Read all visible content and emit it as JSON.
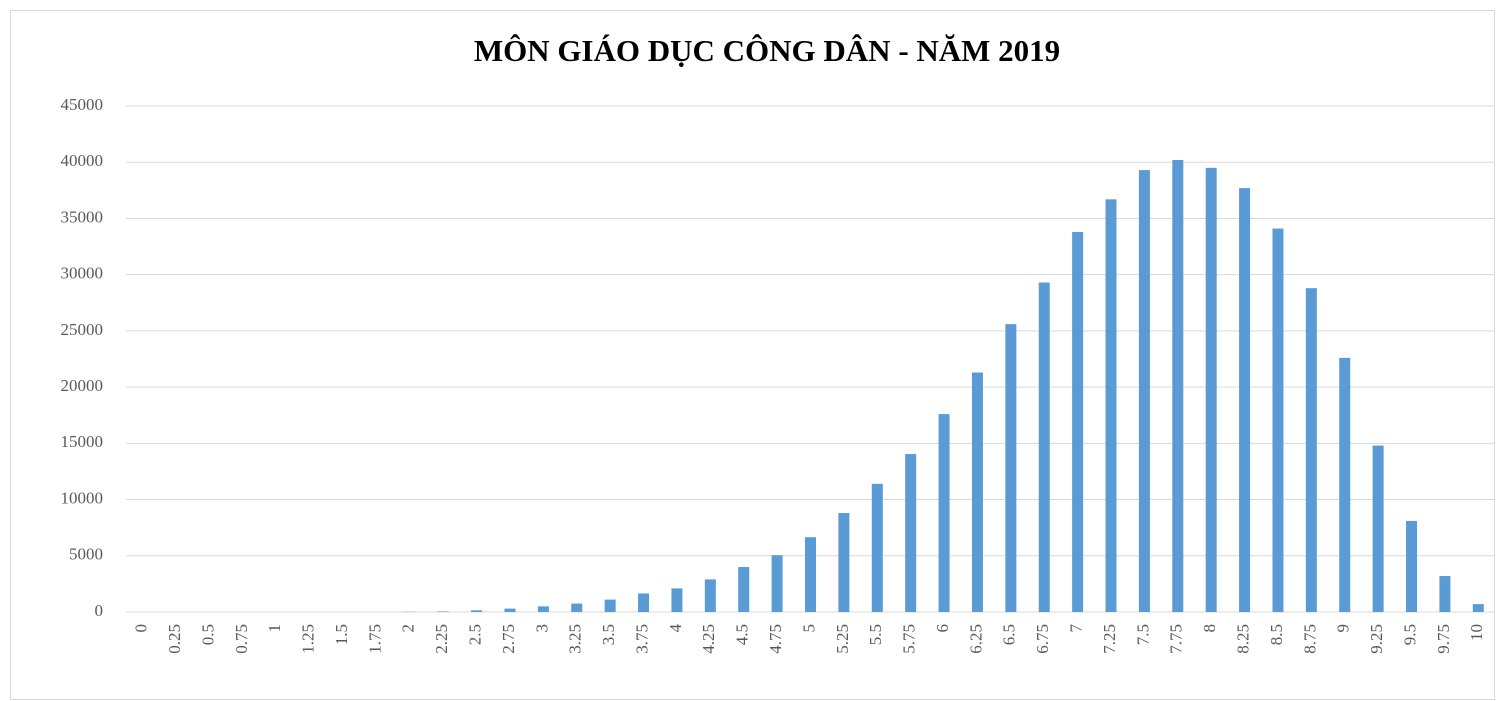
{
  "chart_data": {
    "type": "bar",
    "title": "MÔN GIÁO DỤC CÔNG DÂN - NĂM 2019",
    "categories": [
      "0",
      "0.25",
      "0.5",
      "0.75",
      "1",
      "1.25",
      "1.5",
      "1.75",
      "2",
      "2.25",
      "2.5",
      "2.75",
      "3",
      "3.25",
      "3.5",
      "3.75",
      "4",
      "4.25",
      "4.5",
      "4.75",
      "5",
      "5.25",
      "5.5",
      "5.75",
      "6",
      "6.25",
      "6.5",
      "6.75",
      "7",
      "7.25",
      "7.5",
      "7.75",
      "8",
      "8.25",
      "8.5",
      "8.75",
      "9",
      "9.25",
      "9.5",
      "9.75",
      "10"
    ],
    "values": [
      0,
      0,
      0,
      0,
      0,
      0,
      0,
      0,
      20,
      50,
      150,
      300,
      500,
      750,
      1100,
      1650,
      2100,
      2900,
      4000,
      5050,
      6650,
      8800,
      11400,
      14050,
      17600,
      21300,
      25600,
      29300,
      33800,
      36700,
      39300,
      40200,
      39500,
      37700,
      34100,
      28800,
      22600,
      14800,
      8100,
      3200,
      700
    ],
    "color": "#5b9bd5",
    "ylim": [
      0,
      45000
    ],
    "yticks": [
      0,
      5000,
      10000,
      15000,
      20000,
      25000,
      30000,
      35000,
      40000,
      45000
    ],
    "grid": true
  }
}
